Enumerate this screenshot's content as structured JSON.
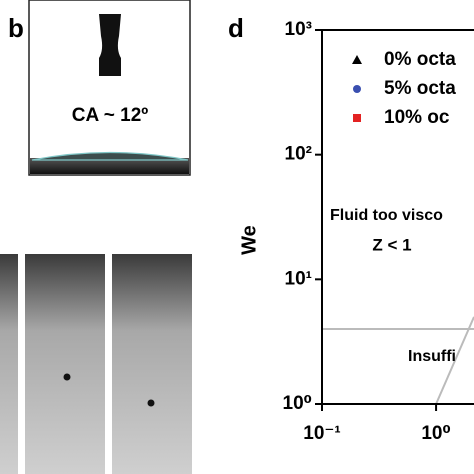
{
  "panel_b": {
    "label": "b",
    "annotation": "CA ~ 12º"
  },
  "chart_data": {
    "type": "scatter",
    "panel_label": "d",
    "y_label": "We",
    "log_x": true,
    "log_y": true,
    "xlim": [
      0.1,
      2.15
    ],
    "ylim": [
      1,
      1000
    ],
    "xticks": [
      {
        "value": 0.1,
        "label": "10⁻¹"
      },
      {
        "value": 1,
        "label": "10⁰"
      }
    ],
    "yticks": [
      {
        "value": 1,
        "label": "10⁰"
      },
      {
        "value": 10,
        "label": "10¹"
      },
      {
        "value": 100,
        "label": "10²"
      },
      {
        "value": 1000,
        "label": "10³"
      }
    ],
    "series": [
      {
        "name": "0% octa",
        "color": "#000000",
        "marker": "triangle",
        "x": [],
        "values": []
      },
      {
        "name": "5% octa",
        "color": "#3a4fb0",
        "marker": "circle",
        "x": [],
        "values": []
      },
      {
        "name": "10% oc",
        "color": "#e32222",
        "marker": "square",
        "x": [],
        "values": []
      }
    ],
    "lines": [
      {
        "color": "#bbbbbb",
        "x": [
          0.1,
          2.15
        ],
        "values": [
          4,
          4
        ]
      },
      {
        "color": "#bbbbbb",
        "x": [
          1,
          2.15
        ],
        "values": [
          1,
          5
        ]
      }
    ],
    "annotations": [
      "Fluid too visco",
      "Z < 1",
      "Insuffi"
    ]
  }
}
